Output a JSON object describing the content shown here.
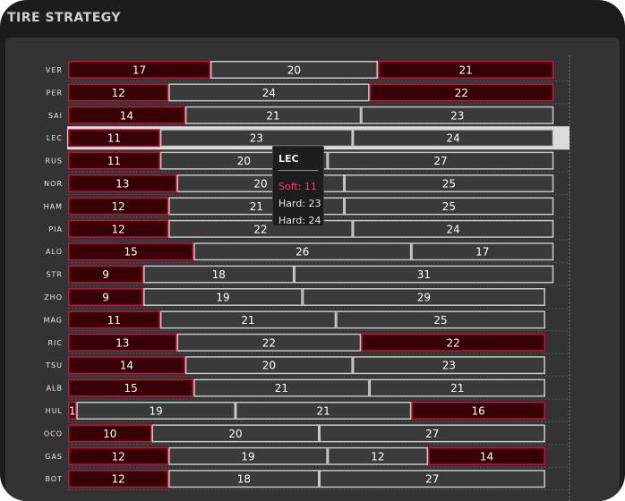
{
  "chart_title": "TIRE STRATEGY",
  "colors": {
    "soft_fill": "#360006",
    "soft_stroke": "#c8103c",
    "hard_fill": "#3a3a3a",
    "hard_stroke": "#c8c8c8",
    "label": "#e8e8e8",
    "highlight": "#dcdcdc"
  },
  "chart_data": {
    "type": "bar",
    "orientation": "horizontal",
    "stacked": true,
    "drivers": [
      {
        "name": "VER",
        "stints": [
          {
            "compound": "Soft",
            "laps": 17
          },
          {
            "compound": "Hard",
            "laps": 20
          },
          {
            "compound": "Soft",
            "laps": 21
          }
        ]
      },
      {
        "name": "PER",
        "stints": [
          {
            "compound": "Soft",
            "laps": 12
          },
          {
            "compound": "Hard",
            "laps": 24
          },
          {
            "compound": "Soft",
            "laps": 22
          }
        ]
      },
      {
        "name": "SAI",
        "stints": [
          {
            "compound": "Soft",
            "laps": 14
          },
          {
            "compound": "Hard",
            "laps": 21
          },
          {
            "compound": "Hard",
            "laps": 23
          }
        ]
      },
      {
        "name": "LEC",
        "stints": [
          {
            "compound": "Soft",
            "laps": 11
          },
          {
            "compound": "Hard",
            "laps": 23
          },
          {
            "compound": "Hard",
            "laps": 24
          }
        ]
      },
      {
        "name": "RUS",
        "stints": [
          {
            "compound": "Soft",
            "laps": 11
          },
          {
            "compound": "Hard",
            "laps": 20
          },
          {
            "compound": "Hard",
            "laps": 27
          }
        ]
      },
      {
        "name": "NOR",
        "stints": [
          {
            "compound": "Soft",
            "laps": 13
          },
          {
            "compound": "Hard",
            "laps": 20
          },
          {
            "compound": "Hard",
            "laps": 25
          }
        ]
      },
      {
        "name": "HAM",
        "stints": [
          {
            "compound": "Soft",
            "laps": 12
          },
          {
            "compound": "Hard",
            "laps": 21
          },
          {
            "compound": "Hard",
            "laps": 25
          }
        ]
      },
      {
        "name": "PIA",
        "stints": [
          {
            "compound": "Soft",
            "laps": 12
          },
          {
            "compound": "Hard",
            "laps": 22
          },
          {
            "compound": "Hard",
            "laps": 24
          }
        ]
      },
      {
        "name": "ALO",
        "stints": [
          {
            "compound": "Soft",
            "laps": 15
          },
          {
            "compound": "Hard",
            "laps": 26
          },
          {
            "compound": "Hard",
            "laps": 17
          }
        ]
      },
      {
        "name": "STR",
        "stints": [
          {
            "compound": "Soft",
            "laps": 9
          },
          {
            "compound": "Hard",
            "laps": 18
          },
          {
            "compound": "Hard",
            "laps": 31
          }
        ]
      },
      {
        "name": "ZHO",
        "stints": [
          {
            "compound": "Soft",
            "laps": 9
          },
          {
            "compound": "Hard",
            "laps": 19
          },
          {
            "compound": "Hard",
            "laps": 29
          }
        ]
      },
      {
        "name": "MAG",
        "stints": [
          {
            "compound": "Soft",
            "laps": 11
          },
          {
            "compound": "Hard",
            "laps": 21
          },
          {
            "compound": "Hard",
            "laps": 25
          }
        ]
      },
      {
        "name": "RIC",
        "stints": [
          {
            "compound": "Soft",
            "laps": 13
          },
          {
            "compound": "Hard",
            "laps": 22
          },
          {
            "compound": "Soft",
            "laps": 22
          }
        ]
      },
      {
        "name": "TSU",
        "stints": [
          {
            "compound": "Soft",
            "laps": 14
          },
          {
            "compound": "Hard",
            "laps": 20
          },
          {
            "compound": "Hard",
            "laps": 23
          }
        ]
      },
      {
        "name": "ALB",
        "stints": [
          {
            "compound": "Soft",
            "laps": 15
          },
          {
            "compound": "Hard",
            "laps": 21
          },
          {
            "compound": "Hard",
            "laps": 21
          }
        ]
      },
      {
        "name": "HUL",
        "stints": [
          {
            "compound": "Soft",
            "laps": 1
          },
          {
            "compound": "Hard",
            "laps": 19
          },
          {
            "compound": "Hard",
            "laps": 21
          },
          {
            "compound": "Soft",
            "laps": 16
          }
        ]
      },
      {
        "name": "OCO",
        "stints": [
          {
            "compound": "Soft",
            "laps": 10
          },
          {
            "compound": "Hard",
            "laps": 20
          },
          {
            "compound": "Hard",
            "laps": 27
          }
        ]
      },
      {
        "name": "GAS",
        "stints": [
          {
            "compound": "Soft",
            "laps": 12
          },
          {
            "compound": "Hard",
            "laps": 19
          },
          {
            "compound": "Hard",
            "laps": 12
          },
          {
            "compound": "Soft",
            "laps": 14
          }
        ]
      },
      {
        "name": "BOT",
        "stints": [
          {
            "compound": "Soft",
            "laps": 12
          },
          {
            "compound": "Hard",
            "laps": 18
          },
          {
            "compound": "Hard",
            "laps": 27
          }
        ]
      }
    ],
    "x_max": 58,
    "highlighted_driver": "LEC",
    "tooltip": {
      "driver": "LEC",
      "lines": [
        "Soft: 11",
        "Hard: 23",
        "Hard: 24"
      ]
    }
  }
}
